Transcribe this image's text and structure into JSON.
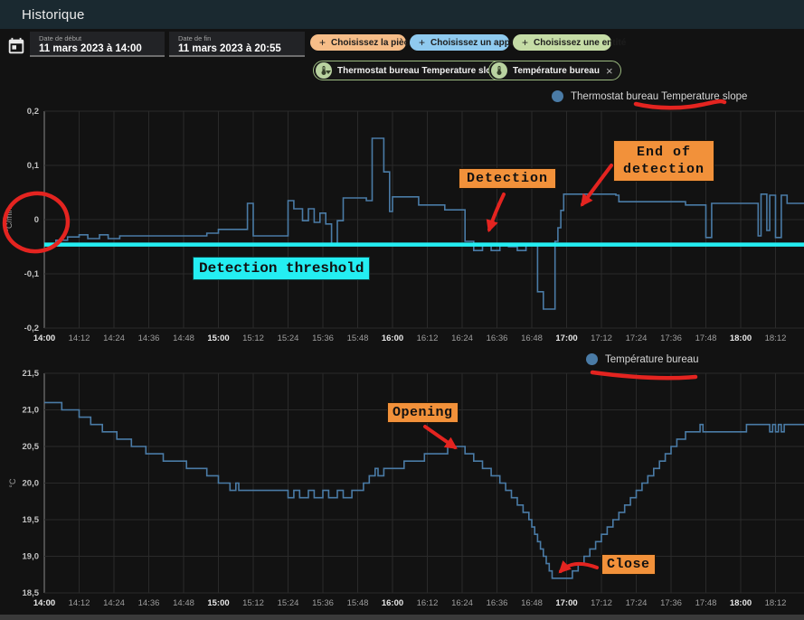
{
  "header": {
    "title": "Historique"
  },
  "controls": {
    "date_start": {
      "label": "Date de début",
      "value": "11 mars 2023 à 14:00"
    },
    "date_end": {
      "label": "Date de fin",
      "value": "11 mars 2023 à 20:55"
    },
    "plus_icon": "+",
    "close_icon": "×",
    "pickers": [
      {
        "label": "Choisissez la pièce",
        "color": "#f6bd88"
      },
      {
        "label": "Choisissez un appareil",
        "color": "#8fcaef"
      },
      {
        "label": "Choisissez une entité",
        "color": "#c5dca6"
      }
    ],
    "chips": [
      {
        "label": "Thermostat bureau Temperature slope"
      },
      {
        "label": "Température bureau"
      }
    ]
  },
  "annotations": {
    "detection": "Detection",
    "end_of_detection": "End of\ndetection",
    "threshold": "Detection threshold",
    "opening": "Opening",
    "close": "Close"
  },
  "colors": {
    "annotation_orange": "#f2913a",
    "annotation_red": "#e42420",
    "threshold_cyan": "#24eef2",
    "line_blue": "#4a7ba6",
    "header_bar": "#1a2930"
  },
  "chart_data": [
    {
      "type": "line",
      "legend": "Thermostat bureau Temperature slope",
      "ylabel": "°C/min",
      "ylim": [
        -0.2,
        0.2
      ],
      "grid": true,
      "legend_position": "top-center",
      "line_color": "#4a7ba6",
      "y_ticks": [
        {
          "value": 0.2,
          "label": "0,2"
        },
        {
          "value": 0.1,
          "label": "0,1"
        },
        {
          "value": 0,
          "label": "0"
        },
        {
          "value": -0.1,
          "label": "-0,1"
        },
        {
          "value": -0.2,
          "label": "-0,2"
        }
      ],
      "x_ticks": [
        {
          "label": "14:00",
          "bold": true
        },
        {
          "label": "14:12",
          "bold": false
        },
        {
          "label": "14:24",
          "bold": false
        },
        {
          "label": "14:36",
          "bold": false
        },
        {
          "label": "14:48",
          "bold": false
        },
        {
          "label": "15:00",
          "bold": true
        },
        {
          "label": "15:12",
          "bold": false
        },
        {
          "label": "15:24",
          "bold": false
        },
        {
          "label": "15:36",
          "bold": false
        },
        {
          "label": "15:48",
          "bold": false
        },
        {
          "label": "16:00",
          "bold": true
        },
        {
          "label": "16:12",
          "bold": false
        },
        {
          "label": "16:24",
          "bold": false
        },
        {
          "label": "16:36",
          "bold": false
        },
        {
          "label": "16:48",
          "bold": false
        },
        {
          "label": "17:00",
          "bold": true
        },
        {
          "label": "17:12",
          "bold": false
        },
        {
          "label": "17:24",
          "bold": false
        },
        {
          "label": "17:36",
          "bold": false
        },
        {
          "label": "17:48",
          "bold": false
        },
        {
          "label": "18:00",
          "bold": true
        },
        {
          "label": "18:12",
          "bold": false
        }
      ],
      "threshold": {
        "value": -0.046,
        "color": "#24eef2",
        "label": "Detection threshold"
      },
      "series": [
        {
          "name": "Thermostat bureau Temperature slope",
          "unit": "°C/min",
          "step_points": [
            [
              0,
              -0.045
            ],
            [
              4,
              -0.038
            ],
            [
              8,
              -0.032
            ],
            [
              12,
              -0.028
            ],
            [
              15,
              -0.035
            ],
            [
              19,
              -0.028
            ],
            [
              22,
              -0.035
            ],
            [
              26,
              -0.03
            ],
            [
              56,
              -0.025
            ],
            [
              60,
              -0.018
            ],
            [
              70,
              0.03
            ],
            [
              72,
              -0.03
            ],
            [
              84,
              0.035
            ],
            [
              86,
              0.02
            ],
            [
              89,
              -0.002
            ],
            [
              91,
              0.02
            ],
            [
              93,
              -0.005
            ],
            [
              95,
              0.012
            ],
            [
              97,
              -0.008
            ],
            [
              99,
              -0.045
            ],
            [
              101,
              -0.002
            ],
            [
              103,
              0.04
            ],
            [
              111,
              0.035
            ],
            [
              113,
              0.15
            ],
            [
              117,
              0.088
            ],
            [
              119,
              0.015
            ],
            [
              120,
              0.042
            ],
            [
              129,
              0.027
            ],
            [
              138,
              0.018
            ],
            [
              145,
              -0.04
            ],
            [
              148,
              -0.057
            ],
            [
              151,
              -0.045
            ],
            [
              154,
              -0.057
            ],
            [
              157,
              -0.045
            ],
            [
              160,
              -0.05
            ],
            [
              163,
              -0.057
            ],
            [
              166,
              -0.045
            ],
            [
              169,
              -0.048
            ],
            [
              170,
              -0.133
            ],
            [
              172,
              -0.165
            ],
            [
              175,
              -0.165
            ],
            [
              176,
              -0.04
            ],
            [
              177,
              -0.015
            ],
            [
              178,
              0.017
            ],
            [
              179,
              0.047
            ],
            [
              197,
              0.045
            ],
            [
              198,
              0.033
            ],
            [
              220,
              0.033
            ],
            [
              221,
              0.027
            ],
            [
              227,
              0.027
            ],
            [
              228,
              -0.033
            ],
            [
              230,
              0.03
            ],
            [
              245,
              0.03
            ],
            [
              246,
              -0.03
            ],
            [
              247,
              0.047
            ],
            [
              249,
              -0.02
            ],
            [
              250,
              0.045
            ],
            [
              252,
              -0.033
            ],
            [
              254,
              0.045
            ],
            [
              256,
              0.03
            ],
            [
              262,
              0.03
            ]
          ]
        }
      ]
    },
    {
      "type": "line",
      "legend": "Température bureau",
      "ylabel": "°C",
      "ylim": [
        18.5,
        21.5
      ],
      "grid": true,
      "legend_position": "top-center",
      "line_color": "#4a7ba6",
      "y_ticks": [
        {
          "value": 21.5,
          "label": "21,5"
        },
        {
          "value": 21.0,
          "label": "21,0"
        },
        {
          "value": 20.5,
          "label": "20,5"
        },
        {
          "value": 20.0,
          "label": "20,0"
        },
        {
          "value": 19.5,
          "label": "19,5"
        },
        {
          "value": 19.0,
          "label": "19,0"
        },
        {
          "value": 18.5,
          "label": "18,5"
        }
      ],
      "x_ticks": [
        {
          "label": "14:00",
          "bold": true
        },
        {
          "label": "14:12",
          "bold": false
        },
        {
          "label": "14:24",
          "bold": false
        },
        {
          "label": "14:36",
          "bold": false
        },
        {
          "label": "14:48",
          "bold": false
        },
        {
          "label": "15:00",
          "bold": true
        },
        {
          "label": "15:12",
          "bold": false
        },
        {
          "label": "15:24",
          "bold": false
        },
        {
          "label": "15:36",
          "bold": false
        },
        {
          "label": "15:48",
          "bold": false
        },
        {
          "label": "16:00",
          "bold": true
        },
        {
          "label": "16:12",
          "bold": false
        },
        {
          "label": "16:24",
          "bold": false
        },
        {
          "label": "16:36",
          "bold": false
        },
        {
          "label": "16:48",
          "bold": false
        },
        {
          "label": "17:00",
          "bold": true
        },
        {
          "label": "17:12",
          "bold": false
        },
        {
          "label": "17:24",
          "bold": false
        },
        {
          "label": "17:36",
          "bold": false
        },
        {
          "label": "17:48",
          "bold": false
        },
        {
          "label": "18:00",
          "bold": true
        },
        {
          "label": "18:12",
          "bold": false
        }
      ],
      "series": [
        {
          "name": "Température bureau",
          "unit": "°C",
          "step_points": [
            [
              0,
              21.1
            ],
            [
              6,
              21.0
            ],
            [
              12,
              20.9
            ],
            [
              16,
              20.8
            ],
            [
              20,
              20.7
            ],
            [
              25,
              20.6
            ],
            [
              30,
              20.5
            ],
            [
              35,
              20.4
            ],
            [
              41,
              20.3
            ],
            [
              49,
              20.2
            ],
            [
              56,
              20.1
            ],
            [
              60,
              20.0
            ],
            [
              64,
              19.9
            ],
            [
              66,
              20.0
            ],
            [
              67,
              19.9
            ],
            [
              84,
              19.8
            ],
            [
              86,
              19.9
            ],
            [
              88,
              19.8
            ],
            [
              91,
              19.9
            ],
            [
              93,
              19.8
            ],
            [
              96,
              19.9
            ],
            [
              98,
              19.8
            ],
            [
              101,
              19.9
            ],
            [
              103,
              19.8
            ],
            [
              106,
              19.9
            ],
            [
              110,
              20.0
            ],
            [
              112,
              20.1
            ],
            [
              114,
              20.2
            ],
            [
              115,
              20.1
            ],
            [
              117,
              20.2
            ],
            [
              124,
              20.3
            ],
            [
              131,
              20.4
            ],
            [
              139,
              20.5
            ],
            [
              145,
              20.4
            ],
            [
              148,
              20.3
            ],
            [
              151,
              20.2
            ],
            [
              154,
              20.1
            ],
            [
              157,
              20.0
            ],
            [
              159,
              19.9
            ],
            [
              161,
              19.8
            ],
            [
              163,
              19.7
            ],
            [
              165,
              19.6
            ],
            [
              167,
              19.5
            ],
            [
              168,
              19.4
            ],
            [
              169,
              19.3
            ],
            [
              170,
              19.2
            ],
            [
              171,
              19.1
            ],
            [
              172,
              19.0
            ],
            [
              173,
              18.9
            ],
            [
              174,
              18.8
            ],
            [
              175,
              18.7
            ],
            [
              180,
              18.7
            ],
            [
              182,
              18.8
            ],
            [
              184,
              18.9
            ],
            [
              186,
              19.0
            ],
            [
              188,
              19.1
            ],
            [
              190,
              19.2
            ],
            [
              192,
              19.3
            ],
            [
              194,
              19.4
            ],
            [
              196,
              19.5
            ],
            [
              198,
              19.6
            ],
            [
              200,
              19.7
            ],
            [
              202,
              19.8
            ],
            [
              204,
              19.9
            ],
            [
              206,
              20.0
            ],
            [
              208,
              20.1
            ],
            [
              210,
              20.2
            ],
            [
              212,
              20.3
            ],
            [
              214,
              20.4
            ],
            [
              216,
              20.5
            ],
            [
              218,
              20.6
            ],
            [
              221,
              20.7
            ],
            [
              226,
              20.8
            ],
            [
              227,
              20.7
            ],
            [
              242,
              20.8
            ],
            [
              250,
              20.7
            ],
            [
              251,
              20.8
            ],
            [
              252,
              20.7
            ],
            [
              253,
              20.8
            ],
            [
              254,
              20.7
            ],
            [
              255,
              20.8
            ],
            [
              262,
              20.8
            ]
          ]
        }
      ]
    }
  ]
}
